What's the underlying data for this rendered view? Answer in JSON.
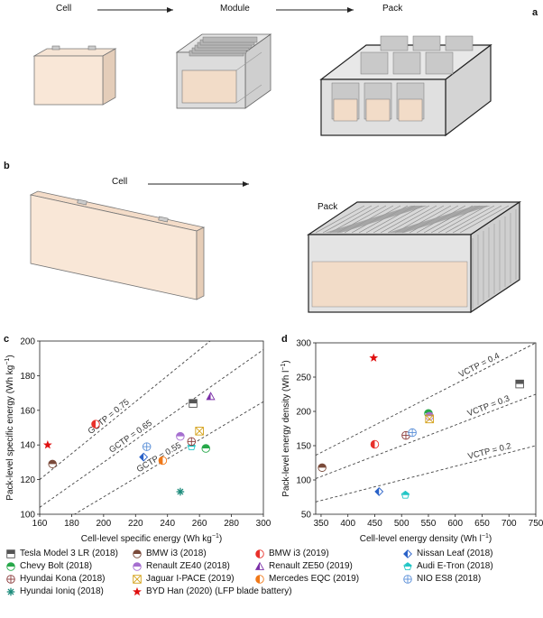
{
  "panels": {
    "a": "a",
    "b": "b",
    "c": "c",
    "d": "d"
  },
  "schematic_a": {
    "cell": "Cell",
    "module": "Module",
    "pack": "Pack"
  },
  "schematic_b": {
    "cell": "Cell",
    "pack": "Pack"
  },
  "legend": [
    {
      "label": "Tesla Model 3 LR (2018)",
      "marker": "square-half",
      "color": "#555555"
    },
    {
      "label": "BMW i3 (2018)",
      "marker": "circle-half-h",
      "color": "#7a4a3a"
    },
    {
      "label": "BMW i3 (2019)",
      "marker": "circle-half-v",
      "color": "#e8302a"
    },
    {
      "label": "Nissan Leaf (2018)",
      "marker": "diamond-half",
      "color": "#2a62c8"
    },
    {
      "label": "Chevy Bolt (2018)",
      "marker": "circle-half-h",
      "color": "#27a84a"
    },
    {
      "label": "Renault ZE40 (2018)",
      "marker": "circle-half-h",
      "color": "#a66fd0"
    },
    {
      "label": "Renault ZE50 (2019)",
      "marker": "triangle-half",
      "color": "#7b2fa8"
    },
    {
      "label": "Audi E-Tron (2018)",
      "marker": "pentagon-half",
      "color": "#22c6c6"
    },
    {
      "label": "Hyundai Kona (2018)",
      "marker": "circle-cross",
      "color": "#8a3a3a"
    },
    {
      "label": "Jaguar I-PACE (2019)",
      "marker": "x-box",
      "color": "#d4a017"
    },
    {
      "label": "Mercedes EQC (2019)",
      "marker": "circle-half-v",
      "color": "#f07818"
    },
    {
      "label": "NIO ES8 (2018)",
      "marker": "circle-cross",
      "color": "#5a8fd8"
    },
    {
      "label": "Hyundai Ioniq (2018)",
      "marker": "asterisk",
      "color": "#1a8a7a"
    },
    {
      "label": "BYD Han (2020) (LFP blade battery)",
      "marker": "star",
      "color": "#e01010"
    }
  ],
  "chart_data": [
    {
      "type": "scatter",
      "panel": "c",
      "xlabel": "Cell-level specific energy (Wh kg",
      "xlabel_sup": "−1",
      "xlabel_end": ")",
      "ylabel": "Pack-level specific energy (Wh kg",
      "ylabel_sup": "−1",
      "ylabel_end": ")",
      "xlim": [
        160,
        300
      ],
      "ylim": [
        100,
        200
      ],
      "xticks": [
        160,
        180,
        200,
        220,
        240,
        260,
        280,
        300
      ],
      "yticks": [
        100,
        120,
        140,
        160,
        180,
        200
      ],
      "xtick_labels": [
        "160",
        "180",
        "200",
        "220",
        "240",
        "260",
        "280",
        "300"
      ],
      "ytick_labels": [
        "100",
        "120",
        "140",
        "160",
        "180",
        "200"
      ],
      "ratio_lines": [
        {
          "label": "GCTP = 0.75",
          "ratio": 0.75,
          "label_x": 192
        },
        {
          "label": "GCTP = 0.65",
          "ratio": 0.65,
          "label_x": 205
        },
        {
          "label": "GCTP = 0.55",
          "ratio": 0.55,
          "label_x": 222
        }
      ],
      "points": [
        {
          "name": "Tesla Model 3 LR (2018)",
          "x": 256,
          "y": 164
        },
        {
          "name": "BMW i3 (2018)",
          "x": 168,
          "y": 129
        },
        {
          "name": "BMW i3 (2019)",
          "x": 195,
          "y": 152
        },
        {
          "name": "Nissan Leaf (2018)",
          "x": 225,
          "y": 133
        },
        {
          "name": "Chevy Bolt (2018)",
          "x": 264,
          "y": 138
        },
        {
          "name": "Renault ZE40 (2018)",
          "x": 248,
          "y": 145
        },
        {
          "name": "Renault ZE50 (2019)",
          "x": 267,
          "y": 168
        },
        {
          "name": "Audi E-Tron (2018)",
          "x": 255,
          "y": 139
        },
        {
          "name": "Hyundai Kona (2018)",
          "x": 255,
          "y": 142
        },
        {
          "name": "Jaguar I-PACE (2019)",
          "x": 260,
          "y": 148
        },
        {
          "name": "Mercedes EQC (2019)",
          "x": 237,
          "y": 131
        },
        {
          "name": "NIO ES8 (2018)",
          "x": 227,
          "y": 139
        },
        {
          "name": "Hyundai Ioniq (2018)",
          "x": 248,
          "y": 113
        },
        {
          "name": "BYD Han (2020) (LFP blade battery)",
          "x": 165,
          "y": 140
        }
      ]
    },
    {
      "type": "scatter",
      "panel": "d",
      "xlabel": "Cell-level energy density (Wh l",
      "xlabel_sup": "−1",
      "xlabel_end": ")",
      "ylabel": "Pack-level energy density (Wh l",
      "ylabel_sup": "−1",
      "ylabel_end": ")",
      "xlim": [
        340,
        750
      ],
      "ylim": [
        50,
        300
      ],
      "xticks": [
        350,
        400,
        450,
        500,
        550,
        600,
        650,
        700,
        750
      ],
      "yticks": [
        50,
        100,
        150,
        200,
        250,
        300
      ],
      "xtick_labels": [
        "350",
        "400",
        "450",
        "500",
        "550",
        "600",
        "650",
        "700",
        "750"
      ],
      "ytick_labels": [
        "50",
        "100",
        "150",
        "200",
        "250",
        "300"
      ],
      "ratio_lines": [
        {
          "label": "VCTP = 0.4",
          "ratio": 0.4,
          "label_x": 610
        },
        {
          "label": "VCTP = 0.3",
          "ratio": 0.3,
          "label_x": 625
        },
        {
          "label": "VCTP = 0.2",
          "ratio": 0.2,
          "label_x": 625
        }
      ],
      "points": [
        {
          "name": "Tesla Model 3 LR (2018)",
          "x": 720,
          "y": 240
        },
        {
          "name": "BMW i3 (2018)",
          "x": 352,
          "y": 118
        },
        {
          "name": "BMW i3 (2019)",
          "x": 450,
          "y": 152
        },
        {
          "name": "Nissan Leaf (2018)",
          "x": 458,
          "y": 83
        },
        {
          "name": "Chevy Bolt (2018)",
          "x": 550,
          "y": 197
        },
        {
          "name": "Renault ZE40 (2018)",
          "x": 552,
          "y": 193
        },
        {
          "name": "Audi E-Tron (2018)",
          "x": 507,
          "y": 78
        },
        {
          "name": "Hyundai Kona (2018)",
          "x": 508,
          "y": 165
        },
        {
          "name": "Jaguar I-PACE (2019)",
          "x": 552,
          "y": 189
        },
        {
          "name": "NIO ES8 (2018)",
          "x": 520,
          "y": 169
        },
        {
          "name": "BYD Han (2020) (LFP blade battery)",
          "x": 448,
          "y": 278
        }
      ]
    }
  ]
}
